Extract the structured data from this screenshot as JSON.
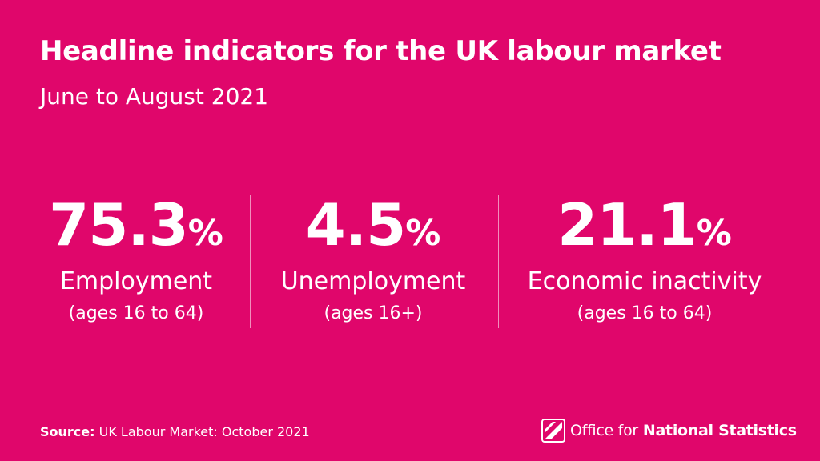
{
  "header": {
    "title": "Headline indicators for the UK labour market",
    "subtitle": "June to August 2021"
  },
  "stats": [
    {
      "value": "75.3",
      "unit": "%",
      "label": "Employment",
      "note": "(ages 16 to 64)"
    },
    {
      "value": "4.5",
      "unit": "%",
      "label": "Unemployment",
      "note": "(ages 16+)"
    },
    {
      "value": "21.1",
      "unit": "%",
      "label": "Economic inactivity",
      "note": "(ages 16 to 64)"
    }
  ],
  "footer": {
    "source_label": "Source:",
    "source_text": "UK Labour Market: October 2021",
    "logo_text_light": "Office for",
    "logo_text_bold": "National Statistics",
    "logo_icon": "ons-logo-icon"
  },
  "colors": {
    "background": "#e0066b",
    "text": "#ffffff"
  }
}
